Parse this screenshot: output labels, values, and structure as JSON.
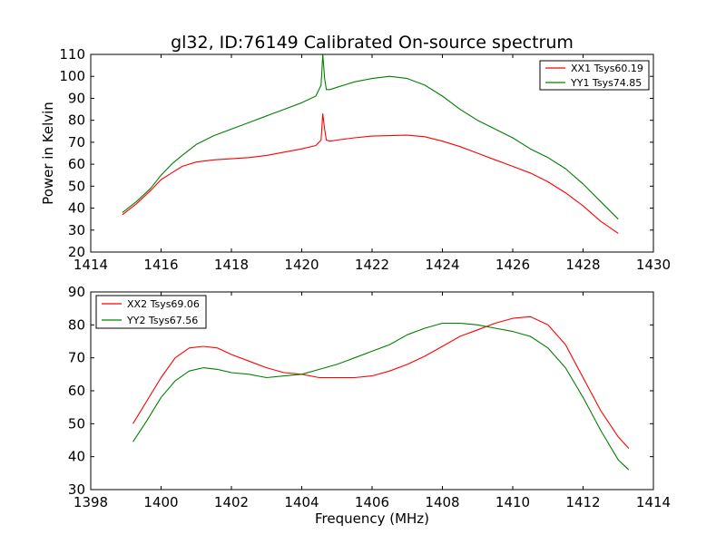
{
  "figure": {
    "title": "gl32, ID:76149 Calibrated On-source spectrum",
    "xlabel": "Frequency (MHz)"
  },
  "chart_data": [
    {
      "type": "line",
      "ylabel": "Power in Kelvin",
      "xlabel": "",
      "xlim": [
        1414,
        1430
      ],
      "ylim": [
        20,
        110
      ],
      "xticks": [
        1414,
        1416,
        1418,
        1420,
        1422,
        1424,
        1426,
        1428,
        1430
      ],
      "yticks": [
        20,
        30,
        40,
        50,
        60,
        70,
        80,
        90,
        100,
        110
      ],
      "grid": false,
      "legend": "top-right",
      "series": [
        {
          "name": "XX1 Tsys60.19",
          "color": "#ff0000",
          "x": [
            1414.9,
            1415.3,
            1415.7,
            1416.0,
            1416.3,
            1416.6,
            1417.0,
            1417.5,
            1418.0,
            1418.5,
            1419.0,
            1419.5,
            1420.0,
            1420.4,
            1420.55,
            1420.6,
            1420.65,
            1420.7,
            1420.8,
            1421.0,
            1421.5,
            1422.0,
            1422.5,
            1423.0,
            1423.5,
            1424.0,
            1424.5,
            1425.0,
            1425.5,
            1426.0,
            1426.5,
            1427.0,
            1427.5,
            1428.0,
            1428.5,
            1429.0
          ],
          "y": [
            37,
            42,
            48,
            53,
            56,
            59,
            61,
            62,
            62.5,
            63,
            64,
            65.5,
            67,
            68.5,
            71,
            83,
            76,
            71,
            70.5,
            71,
            72,
            72.8,
            73,
            73.2,
            72.5,
            70.5,
            68,
            65,
            62,
            59,
            56,
            52,
            47,
            41,
            34,
            28.5
          ]
        },
        {
          "name": "YY1 Tsys74.85",
          "color": "#008000",
          "x": [
            1414.9,
            1415.3,
            1415.7,
            1416.0,
            1416.3,
            1416.6,
            1417.0,
            1417.5,
            1418.0,
            1418.5,
            1419.0,
            1419.5,
            1420.0,
            1420.4,
            1420.55,
            1420.6,
            1420.65,
            1420.7,
            1420.8,
            1421.0,
            1421.5,
            1422.0,
            1422.5,
            1423.0,
            1423.5,
            1424.0,
            1424.5,
            1425.0,
            1425.5,
            1426.0,
            1426.5,
            1427.0,
            1427.5,
            1428.0,
            1428.5,
            1429.0
          ],
          "y": [
            38,
            43,
            49,
            55,
            60,
            64,
            69,
            73,
            76,
            79,
            82,
            85,
            88,
            91,
            96,
            110,
            99,
            94,
            94,
            95,
            97.5,
            99,
            100,
            99,
            96,
            91,
            85,
            80,
            76,
            72,
            67,
            63,
            58,
            51,
            43,
            35
          ]
        }
      ]
    },
    {
      "type": "line",
      "ylabel": "",
      "xlabel": "Frequency (MHz)",
      "xlim": [
        1398,
        1414
      ],
      "ylim": [
        30,
        90
      ],
      "xticks": [
        1398,
        1400,
        1402,
        1404,
        1406,
        1408,
        1410,
        1412,
        1414
      ],
      "yticks": [
        30,
        40,
        50,
        60,
        70,
        80,
        90
      ],
      "grid": false,
      "legend": "top-left",
      "series": [
        {
          "name": "XX2 Tsys69.06",
          "color": "#ff0000",
          "x": [
            1399.2,
            1399.6,
            1400.0,
            1400.4,
            1400.8,
            1401.2,
            1401.6,
            1402.0,
            1402.5,
            1403.0,
            1403.5,
            1404.0,
            1404.5,
            1405.0,
            1405.5,
            1406.0,
            1406.5,
            1407.0,
            1407.5,
            1408.0,
            1408.5,
            1409.0,
            1409.5,
            1410.0,
            1410.5,
            1411.0,
            1411.5,
            1412.0,
            1412.5,
            1413.0,
            1413.3
          ],
          "y": [
            50,
            57,
            64,
            70,
            73,
            73.5,
            73,
            71,
            69,
            67,
            65.5,
            65,
            64,
            64,
            64,
            64.5,
            66,
            68,
            70.5,
            73.5,
            76.5,
            78.5,
            80.5,
            82,
            82.5,
            80,
            74,
            64,
            54,
            46,
            42.5
          ]
        },
        {
          "name": "YY2 Tsys67.56",
          "color": "#008000",
          "x": [
            1399.2,
            1399.6,
            1400.0,
            1400.4,
            1400.8,
            1401.2,
            1401.6,
            1402.0,
            1402.5,
            1403.0,
            1403.5,
            1404.0,
            1404.5,
            1405.0,
            1405.5,
            1406.0,
            1406.5,
            1407.0,
            1407.5,
            1408.0,
            1408.5,
            1409.0,
            1409.5,
            1410.0,
            1410.5,
            1411.0,
            1411.5,
            1412.0,
            1412.5,
            1413.0,
            1413.3
          ],
          "y": [
            44.5,
            51,
            58,
            63,
            66,
            67,
            66.5,
            65.5,
            65,
            64,
            64.5,
            65,
            66.5,
            68,
            70,
            72,
            74,
            77,
            79,
            80.5,
            80.5,
            80,
            79,
            78,
            76.5,
            73,
            67,
            58,
            48,
            39,
            36
          ]
        }
      ]
    }
  ]
}
